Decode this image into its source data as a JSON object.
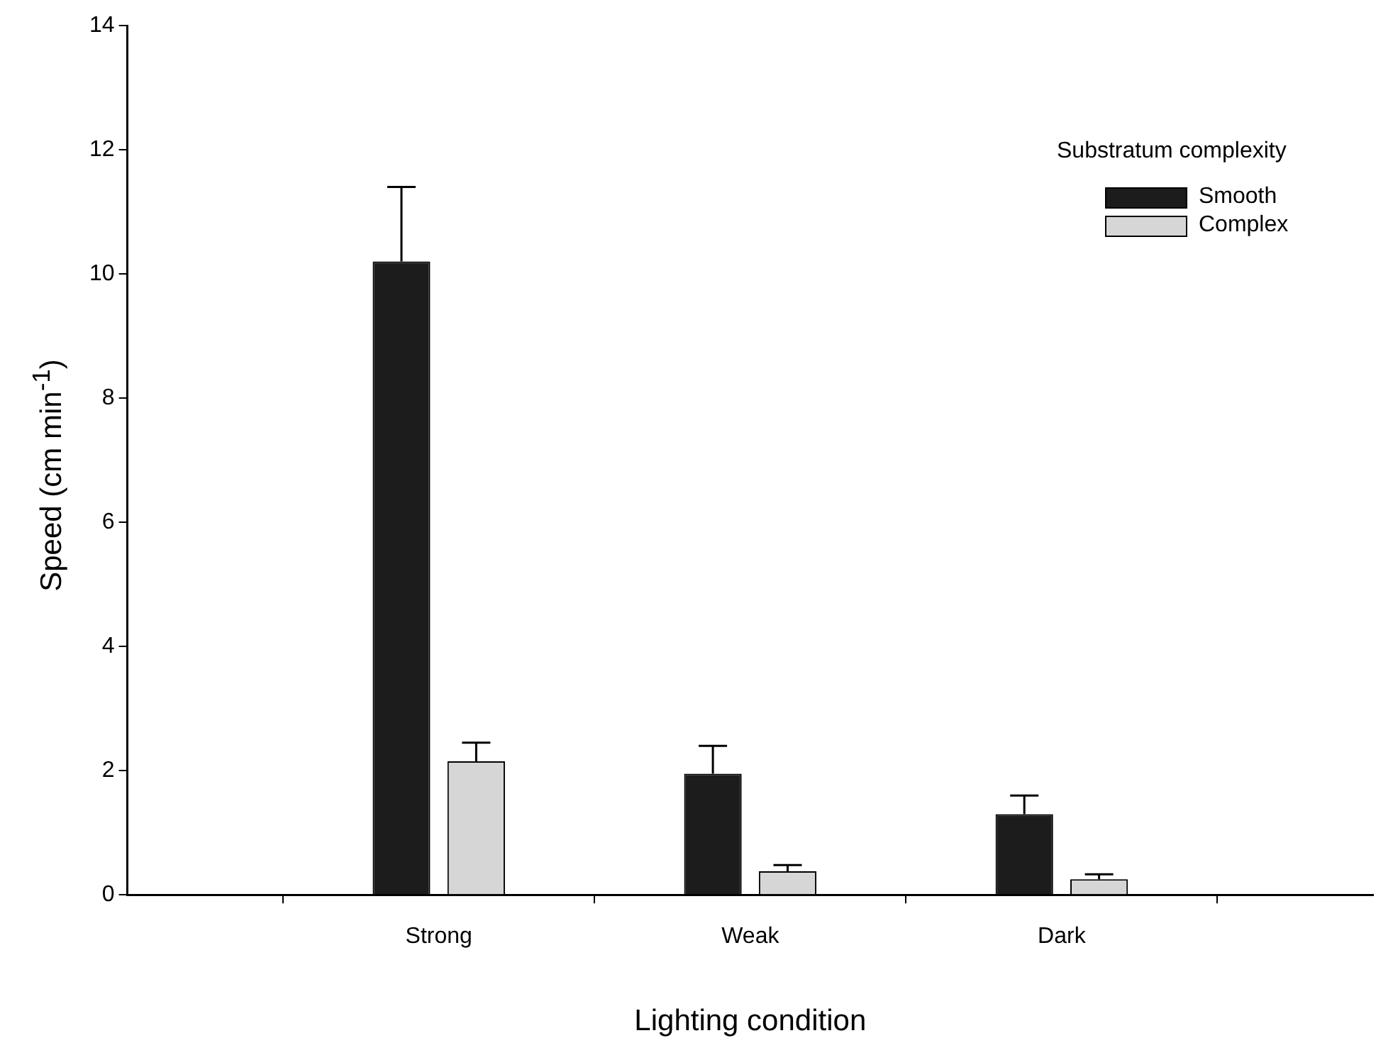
{
  "chart_data": {
    "type": "bar",
    "xlabel": "Lighting condition",
    "ylabel": "Speed (cm min$^{-1}$)",
    "legend_title": "Substratum complexity",
    "categories": [
      null,
      "Strong",
      "Weak",
      "Dark",
      null
    ],
    "series": [
      {
        "name": "Smooth",
        "color": "#1c1c1c",
        "values": [
          null,
          10.2,
          1.95,
          1.3,
          null
        ],
        "errors": [
          null,
          1.2,
          0.45,
          0.3,
          null
        ]
      },
      {
        "name": "Complex",
        "color": "#d6d6d6",
        "values": [
          null,
          2.15,
          0.38,
          0.25,
          null
        ],
        "errors": [
          null,
          0.3,
          0.1,
          0.08,
          null
        ]
      }
    ],
    "ylim": [
      0,
      14
    ],
    "yticks": [
      0,
      2,
      4,
      6,
      8,
      10,
      12,
      14
    ],
    "grid": false,
    "legend": "top right"
  }
}
